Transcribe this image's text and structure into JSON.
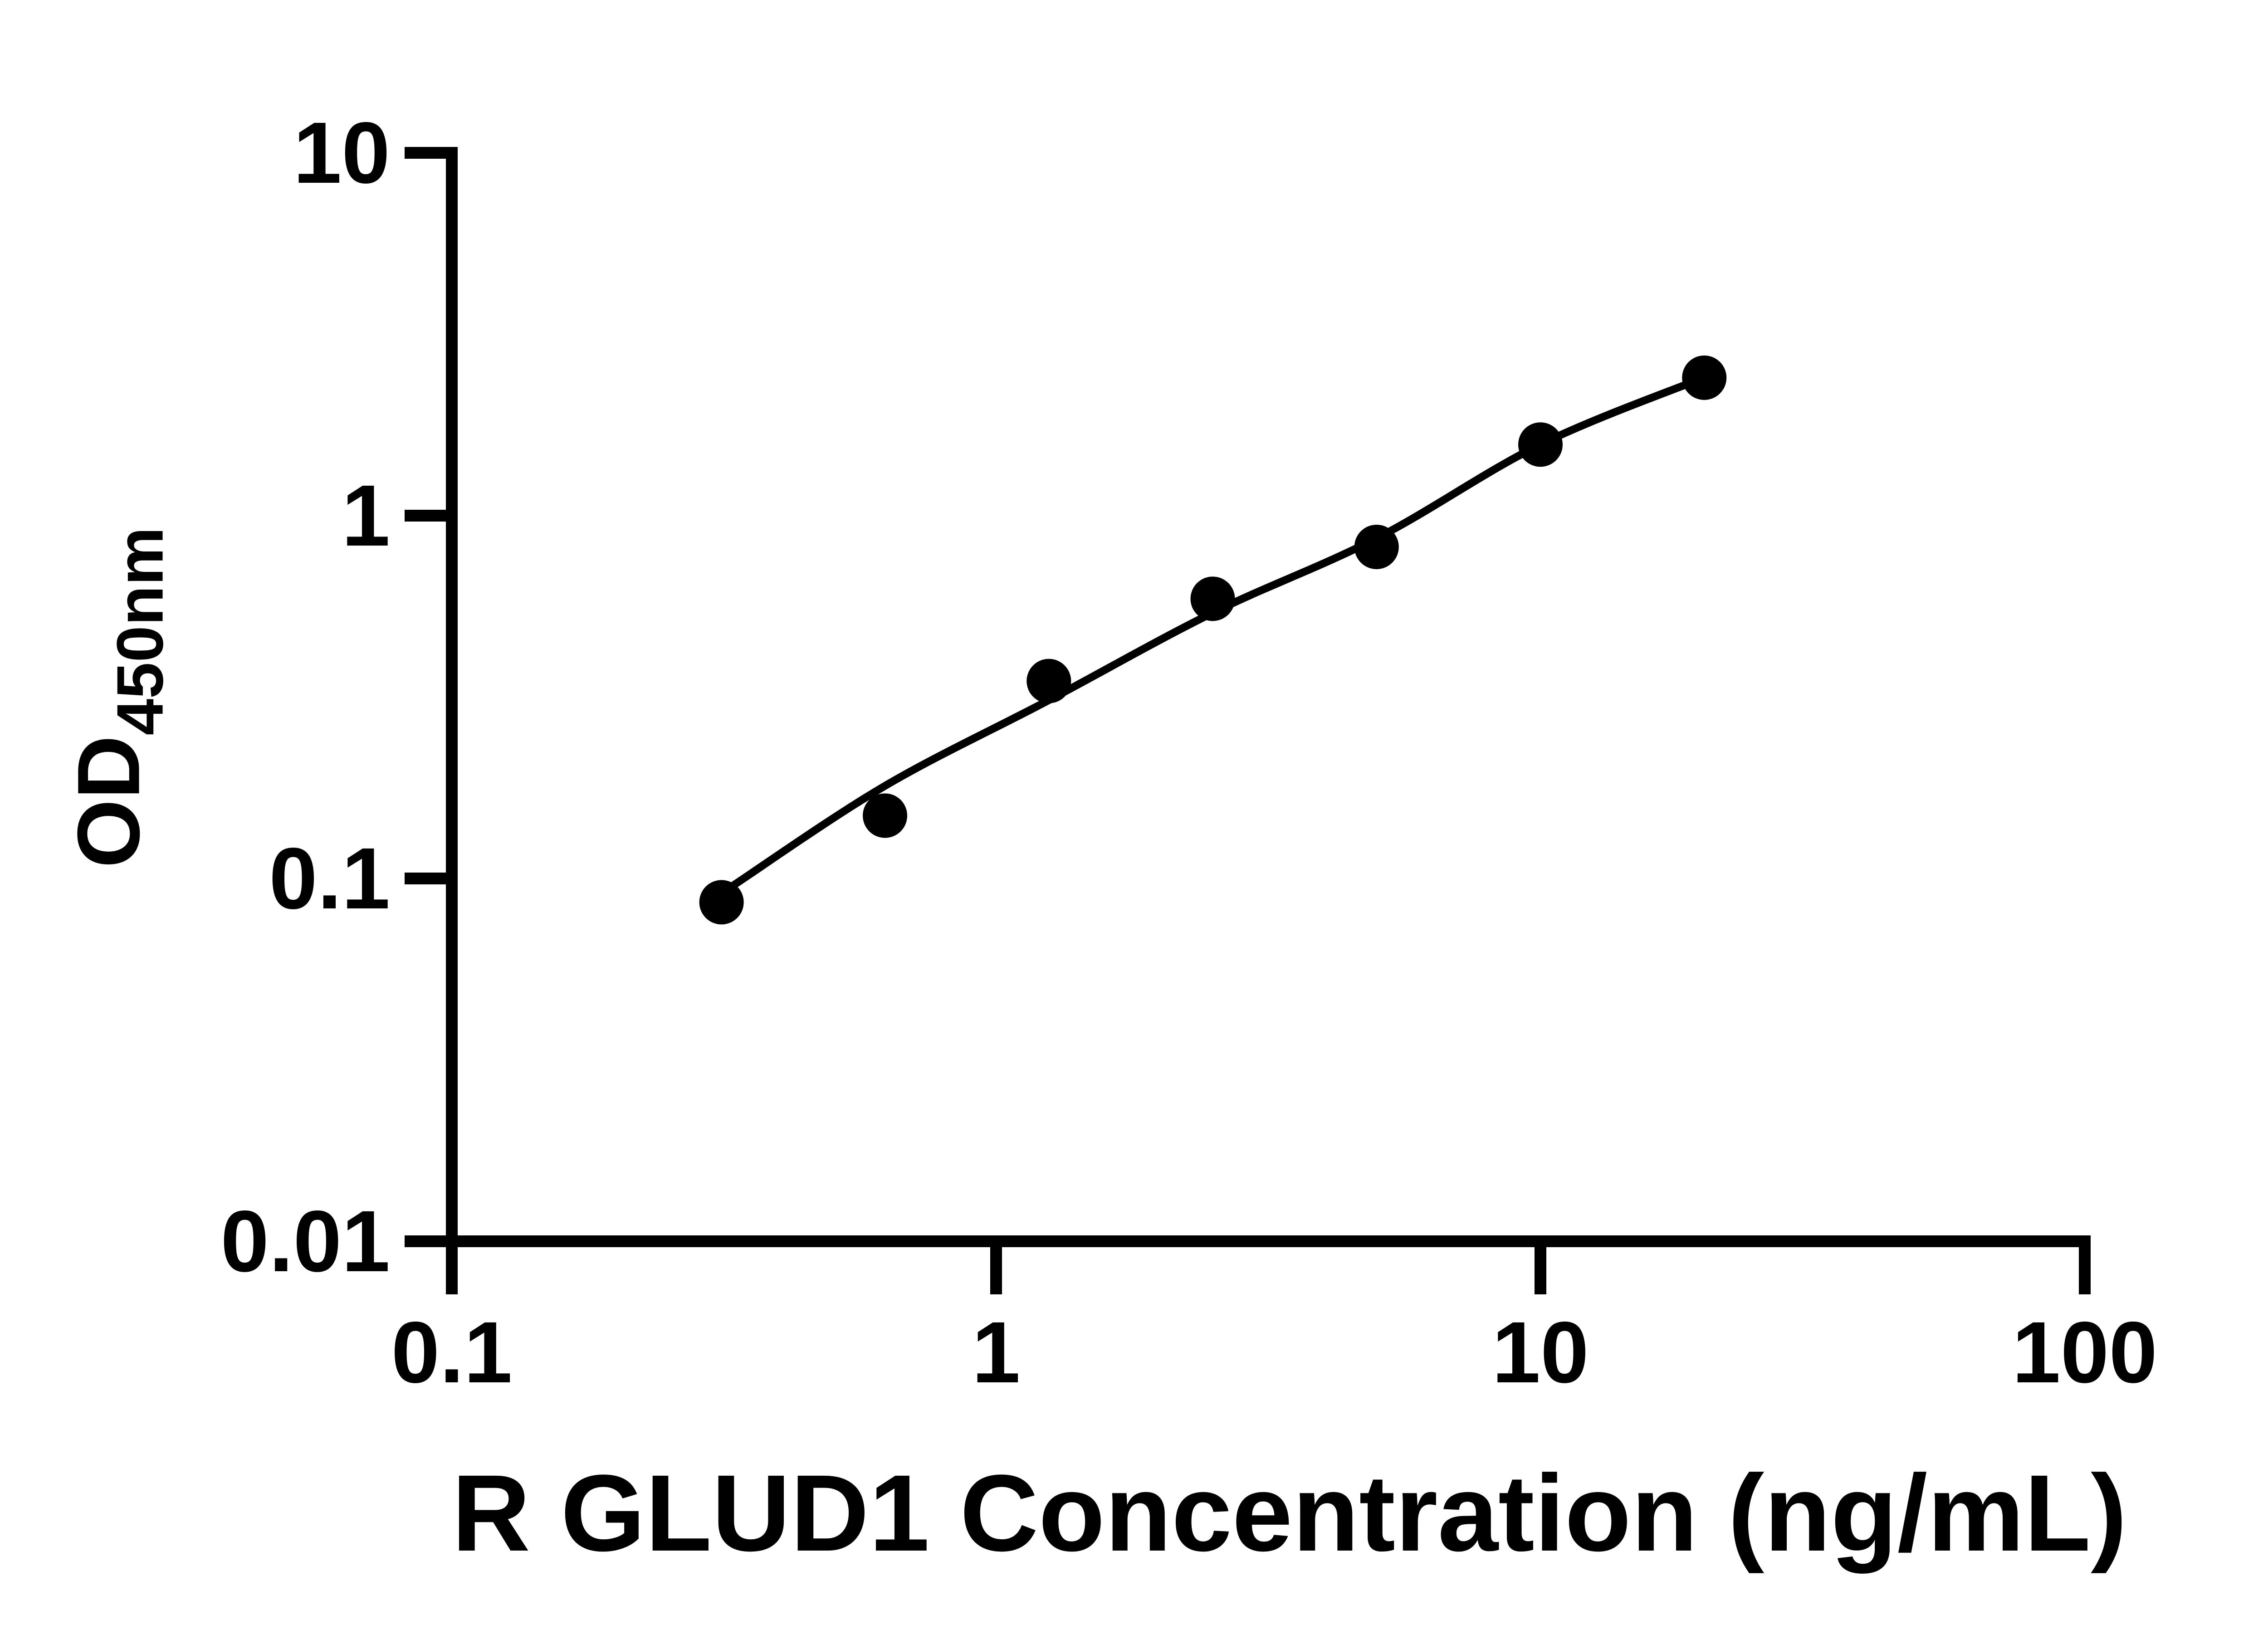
{
  "chart_data": {
    "type": "scatter",
    "xlabel": "R GLUD1 Concentration (ng/mL)",
    "ylabel": {
      "main": "OD",
      "subscript": "450nm"
    },
    "x_scale": "log",
    "y_scale": "log",
    "xlim": [
      0.1,
      100
    ],
    "ylim": [
      0.01,
      10
    ],
    "grid": false,
    "legend": "none",
    "axis_color": "#000000",
    "background_color": "#ffffff",
    "x_ticks": [
      {
        "value": 0.1,
        "label": "0.1"
      },
      {
        "value": 1,
        "label": "1"
      },
      {
        "value": 10,
        "label": "10"
      },
      {
        "value": 100,
        "label": "100"
      }
    ],
    "y_ticks": [
      {
        "value": 0.01,
        "label": "0.01"
      },
      {
        "value": 0.1,
        "label": "0.1"
      },
      {
        "value": 1,
        "label": "1"
      },
      {
        "value": 10,
        "label": "10"
      }
    ],
    "series": [
      {
        "name": "R GLUD1 standard curve data points",
        "marker": "filled-circle",
        "color": "#000000",
        "points": [
          {
            "x": 0.313,
            "y": 0.086
          },
          {
            "x": 0.625,
            "y": 0.149
          },
          {
            "x": 1.25,
            "y": 0.35
          },
          {
            "x": 2.5,
            "y": 0.59
          },
          {
            "x": 5,
            "y": 0.82
          },
          {
            "x": 10,
            "y": 1.57
          },
          {
            "x": 20,
            "y": 2.4
          }
        ]
      }
    ],
    "fit_curve": {
      "name": "fitted standard curve line",
      "color": "#000000",
      "points": [
        {
          "x": 0.33,
          "y": 0.096
        },
        {
          "x": 0.625,
          "y": 0.18
        },
        {
          "x": 1.25,
          "y": 0.31
        },
        {
          "x": 2.5,
          "y": 0.54
        },
        {
          "x": 5,
          "y": 0.866
        },
        {
          "x": 10,
          "y": 1.571
        },
        {
          "x": 20,
          "y": 2.404
        }
      ]
    }
  }
}
